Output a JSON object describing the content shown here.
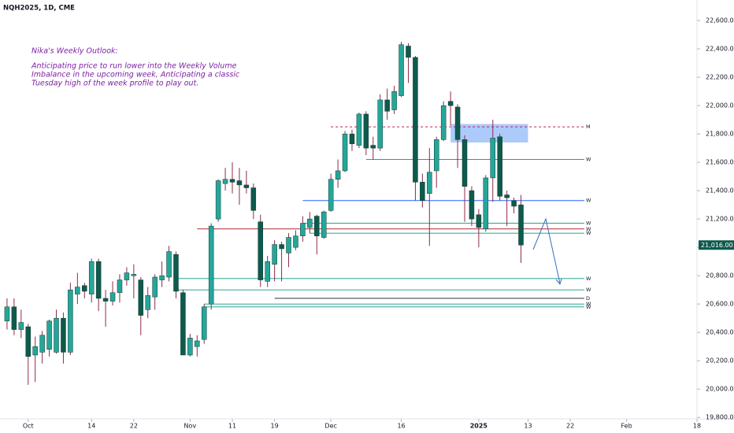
{
  "chart_data": {
    "type": "candlestick",
    "title": "NQH2025, 1D, CME",
    "annotation": {
      "heading": "Nika's Weekly Outlook:",
      "lines": [
        "Anticipating price to run lower into the Weekly Volume",
        "Imbalance in the upcoming week, Anticipating a classic",
        "Tuesday high of the week profile to play out."
      ]
    },
    "up_color": "#26a69a",
    "down_color": "#0e5a4c",
    "wick_color": "#8e2a4a",
    "x": [
      -3,
      -2,
      -1,
      0,
      1,
      2,
      3,
      4,
      5,
      6,
      7,
      8,
      9,
      10,
      11,
      12,
      13,
      14,
      15,
      16,
      17,
      18,
      19,
      20,
      21,
      22,
      23,
      24,
      25,
      26,
      27,
      28,
      29,
      30,
      31,
      32,
      33,
      34,
      35,
      36,
      37,
      38,
      39,
      40,
      41,
      42,
      43,
      44,
      45,
      46,
      47,
      48,
      49,
      50,
      51,
      52,
      53,
      54,
      55,
      56,
      57,
      58,
      59,
      60,
      61,
      62,
      63,
      64,
      65,
      66,
      67,
      68,
      69,
      70
    ],
    "open": [
      20480,
      20580,
      20420,
      20440,
      20240,
      20260,
      20280,
      20260,
      20500,
      20260,
      20670,
      20730,
      20670,
      20900,
      20640,
      20620,
      20680,
      20770,
      20800,
      20770,
      20560,
      20650,
      20770,
      20790,
      20950,
      20680,
      20240,
      20300,
      20350,
      20600,
      21200,
      21450,
      21480,
      21470,
      21440,
      21420,
      21180,
      20760,
      20880,
      21020,
      20960,
      21000,
      21080,
      21140,
      21220,
      21070,
      21260,
      21480,
      21540,
      21800,
      21720,
      21940,
      21720,
      21700,
      22040,
      21970,
      22070,
      22420,
      22340,
      21460,
      21380,
      21540,
      21760,
      22030,
      21990,
      21760,
      21400,
      21230,
      21130,
      21490,
      21780,
      21370,
      21330,
      21300
    ],
    "high": [
      20640,
      20640,
      20560,
      20460,
      20370,
      20410,
      20490,
      20560,
      20540,
      20750,
      20820,
      20750,
      20920,
      20920,
      20700,
      20760,
      20810,
      20860,
      20880,
      20790,
      20720,
      20810,
      20900,
      21010,
      20970,
      20700,
      20390,
      20380,
      20600,
      21170,
      21480,
      21560,
      21600,
      21560,
      21540,
      21450,
      21230,
      20940,
      21050,
      21040,
      21100,
      21120,
      21220,
      21250,
      21230,
      21260,
      21520,
      21620,
      21820,
      21830,
      21950,
      21960,
      21780,
      22080,
      22120,
      22140,
      22450,
      22440,
      22350,
      21520,
      21700,
      21780,
      22030,
      22100,
      22010,
      21790,
      21430,
      21270,
      21510,
      21900,
      21800,
      21400,
      21350,
      21370
    ],
    "low": [
      20420,
      20380,
      20360,
      20030,
      20050,
      20180,
      20230,
      20250,
      20180,
      20240,
      20600,
      20640,
      20610,
      20550,
      20440,
      20590,
      20610,
      20730,
      20640,
      20380,
      20500,
      20560,
      20720,
      20760,
      20640,
      20240,
      20230,
      20230,
      20320,
      20560,
      21180,
      21400,
      21380,
      21300,
      21380,
      21200,
      20720,
      20720,
      20760,
      20760,
      20860,
      20980,
      21040,
      21100,
      20950,
      21060,
      21250,
      21420,
      21530,
      21680,
      21700,
      21650,
      21620,
      21680,
      21900,
      21940,
      22060,
      22160,
      21330,
      21280,
      21010,
      21420,
      21750,
      21860,
      21560,
      21180,
      21150,
      21000,
      21110,
      21320,
      21330,
      21150,
      21240,
      20890
    ],
    "close": [
      20580,
      20420,
      20470,
      20230,
      20300,
      20380,
      20480,
      20500,
      20260,
      20700,
      20720,
      20690,
      20900,
      20640,
      20620,
      20680,
      20770,
      20820,
      20810,
      20520,
      20660,
      20790,
      20800,
      20970,
      20690,
      20240,
      20360,
      20340,
      20580,
      21150,
      21470,
      21480,
      21460,
      21440,
      21420,
      21260,
      20770,
      20900,
      21020,
      20990,
      21070,
      21080,
      21170,
      21200,
      21080,
      21250,
      21480,
      21540,
      21800,
      21730,
      21940,
      21700,
      21700,
      22040,
      21960,
      22100,
      22430,
      22340,
      21460,
      21330,
      21530,
      21760,
      22000,
      22000,
      21760,
      21430,
      21200,
      21140,
      21490,
      21770,
      21360,
      21350,
      21290,
      21016
    ],
    "xlim": [
      -4,
      95
    ],
    "xticks": [
      {
        "value": 0,
        "label": "Oct"
      },
      {
        "value": 9,
        "label": "14"
      },
      {
        "value": 15,
        "label": "22"
      },
      {
        "value": 23,
        "label": "Nov"
      },
      {
        "value": 29,
        "label": "11"
      },
      {
        "value": 35,
        "label": "19"
      },
      {
        "value": 43,
        "label": "Dec"
      },
      {
        "value": 53,
        "label": "16"
      },
      {
        "value": 64,
        "label": "2025"
      },
      {
        "value": 71,
        "label": "13"
      },
      {
        "value": 77,
        "label": "22"
      },
      {
        "value": 85,
        "label": "Feb"
      },
      {
        "value": 95,
        "label": "18"
      }
    ],
    "ylim": [
      19790,
      22745
    ],
    "yticks": [
      {
        "value": 19800,
        "label": "19,800.00"
      },
      {
        "value": 20000,
        "label": "20,000.00"
      },
      {
        "value": 20200,
        "label": "20,200.00"
      },
      {
        "value": 20400,
        "label": "20,400.00"
      },
      {
        "value": 20600,
        "label": "20,600.00"
      },
      {
        "value": 20800,
        "label": "20,800.00"
      },
      {
        "value": 21000,
        "label": "21,000.00"
      },
      {
        "value": 21200,
        "label": "21,200.00"
      },
      {
        "value": 21400,
        "label": "21,400.00"
      },
      {
        "value": 21600,
        "label": "21,600.00"
      },
      {
        "value": 21800,
        "label": "21,800.00"
      },
      {
        "value": 22000,
        "label": "22,000.00"
      },
      {
        "value": 22200,
        "label": "22,200.00"
      },
      {
        "value": 22400,
        "label": "22,400.00"
      },
      {
        "value": 22600,
        "label": "22,600.00"
      }
    ],
    "last_price": {
      "value": 21016,
      "label": "21,016.00"
    },
    "zone": {
      "x": [
        60,
        71
      ],
      "y": [
        21740,
        21870
      ],
      "color": "#90b8f8"
    },
    "levels": [
      {
        "name": "M",
        "value": 21850,
        "x": [
          43,
          79
        ],
        "color": "#c2185b",
        "dashed": true
      },
      {
        "name": "W",
        "value": 21620,
        "x": [
          48,
          79
        ],
        "color": "#2962ff",
        "dashed": false
      },
      {
        "name": "W",
        "value": 21330,
        "x": [
          39,
          79
        ],
        "color": "#2962ff",
        "dashed": false
      },
      {
        "name": "W",
        "value": 21170,
        "x": [
          39,
          79
        ],
        "color": "#089981",
        "dashed": false
      },
      {
        "name": "W",
        "value": 21130,
        "x": [
          24,
          79
        ],
        "color": "#b22833",
        "dashed": false
      },
      {
        "name": "W",
        "value": 21100,
        "x": [
          40,
          79
        ],
        "color": "#089981",
        "dashed": false
      },
      {
        "name": "W",
        "value": 20780,
        "x": [
          21,
          79
        ],
        "color": "#089981",
        "dashed": false
      },
      {
        "name": "W",
        "value": 20700,
        "x": [
          21,
          79
        ],
        "color": "#089981",
        "dashed": false
      },
      {
        "name": "D",
        "value": 20640,
        "x": [
          35,
          79
        ],
        "color": "#131722",
        "dashed": false
      },
      {
        "name": "W",
        "value": 20600,
        "x": [
          25,
          79
        ],
        "color": "#089981",
        "dashed": false
      },
      {
        "name": "W",
        "value": 20580,
        "x": [
          25,
          79
        ],
        "color": "#089981",
        "dashed": false
      }
    ]
  }
}
